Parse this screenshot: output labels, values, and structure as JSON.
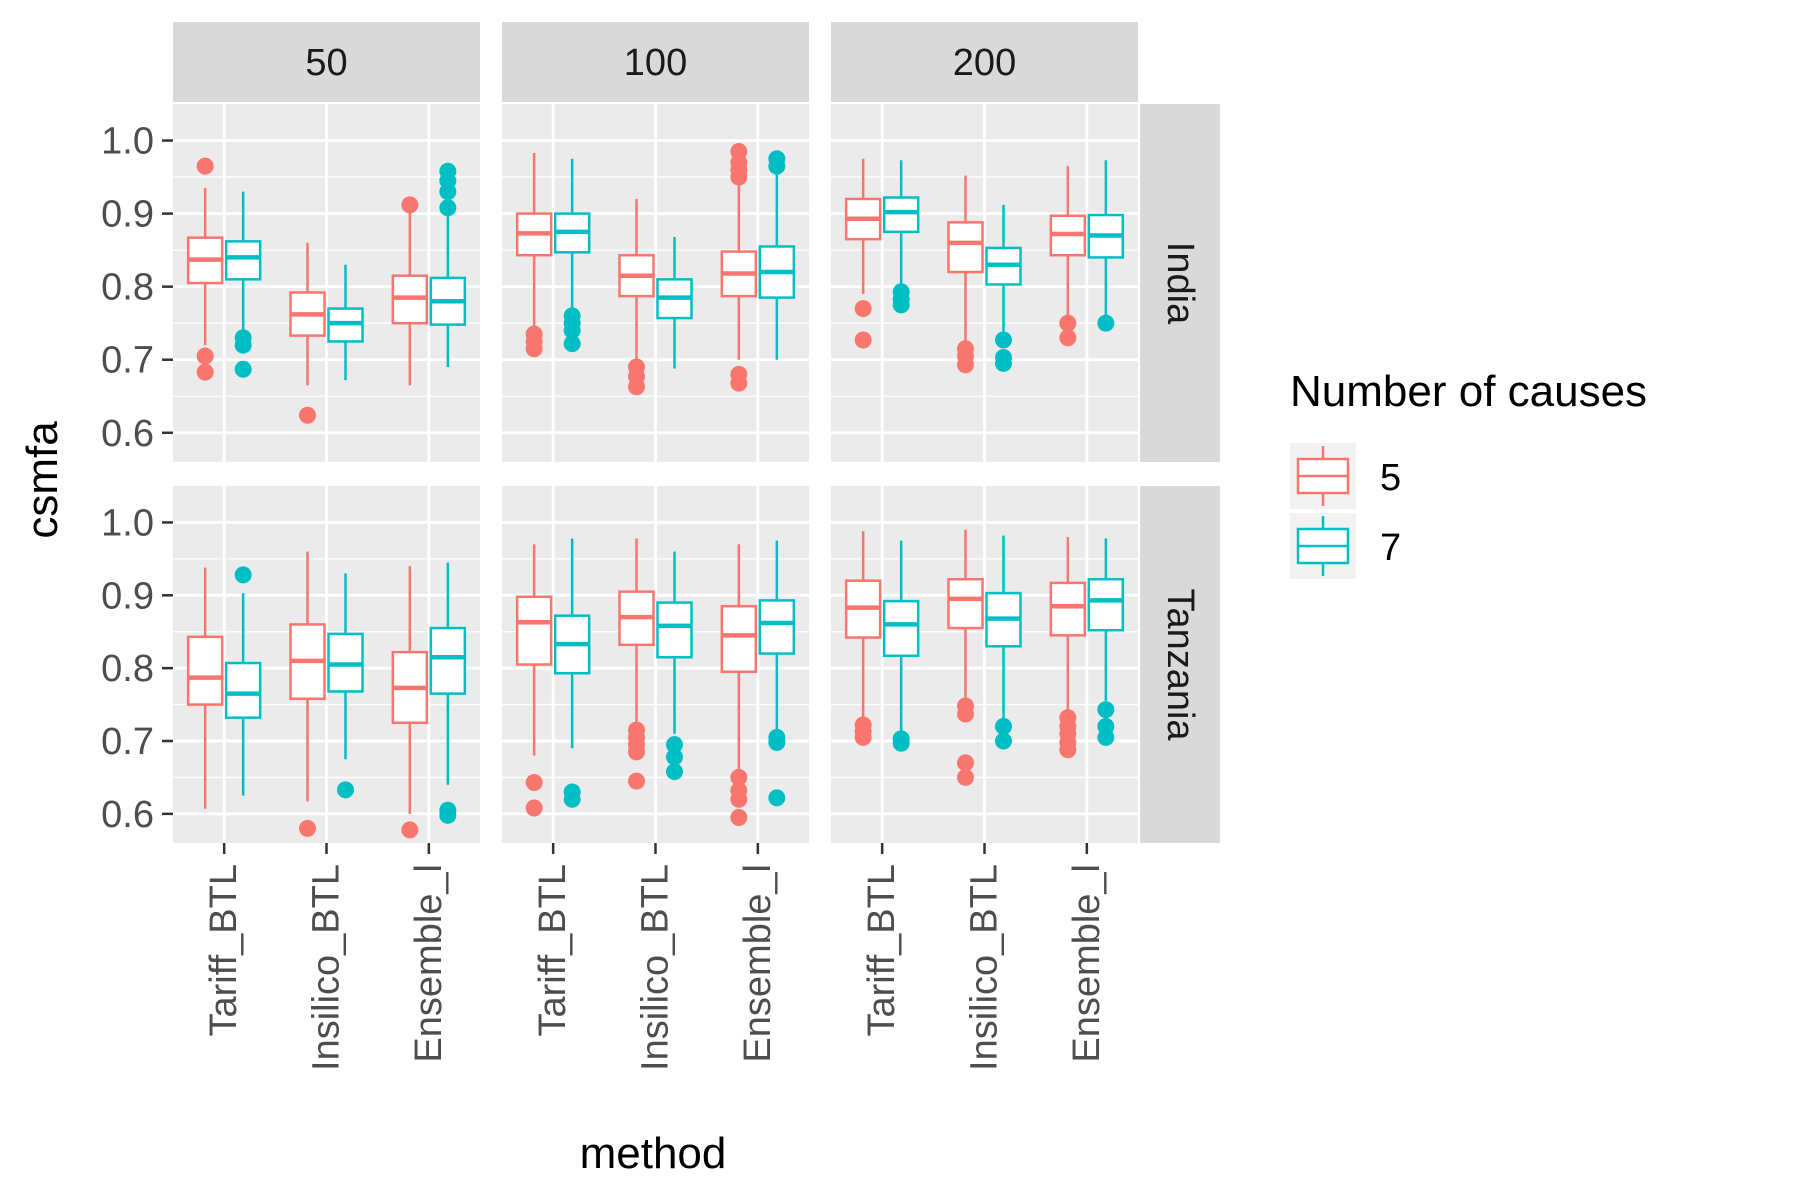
{
  "chart_data": {
    "type": "boxplot",
    "xlabel": "method",
    "ylabel": "csmfa",
    "ylim": [
      0.56,
      1.05
    ],
    "yticks": [
      "0.6",
      "0.7",
      "0.8",
      "0.9",
      "1.0"
    ],
    "categories": [
      "Tariff_BTL",
      "Insilico_BTL",
      "Ensemble_l"
    ],
    "column_facets": [
      "50",
      "100",
      "200"
    ],
    "row_facets": [
      "India",
      "Tanzania"
    ],
    "legend": {
      "title": "Number of causes",
      "position": "right",
      "entries": [
        {
          "label": "5",
          "color": "#F8766D"
        },
        {
          "label": "7",
          "color": "#00BFC4"
        }
      ]
    },
    "grid": true,
    "panels": [
      {
        "column": "50",
        "row": "India",
        "boxes": [
          {
            "method": "Tariff_BTL",
            "group": "5",
            "lower_whisker": 0.72,
            "q1": 0.805,
            "median": 0.837,
            "q3": 0.867,
            "upper_whisker": 0.935,
            "outliers": [
              0.965,
              0.705,
              0.683
            ]
          },
          {
            "method": "Tariff_BTL",
            "group": "7",
            "lower_whisker": 0.74,
            "q1": 0.81,
            "median": 0.84,
            "q3": 0.862,
            "upper_whisker": 0.93,
            "outliers": [
              0.73,
              0.72,
              0.687
            ]
          },
          {
            "method": "Insilico_BTL",
            "group": "5",
            "lower_whisker": 0.665,
            "q1": 0.733,
            "median": 0.762,
            "q3": 0.792,
            "upper_whisker": 0.86,
            "outliers": [
              0.624
            ]
          },
          {
            "method": "Insilico_BTL",
            "group": "7",
            "lower_whisker": 0.672,
            "q1": 0.725,
            "median": 0.75,
            "q3": 0.77,
            "upper_whisker": 0.83,
            "outliers": []
          },
          {
            "method": "Ensemble_l",
            "group": "5",
            "lower_whisker": 0.665,
            "q1": 0.75,
            "median": 0.785,
            "q3": 0.815,
            "upper_whisker": 0.905,
            "outliers": [
              0.912
            ]
          },
          {
            "method": "Ensemble_l",
            "group": "7",
            "lower_whisker": 0.69,
            "q1": 0.748,
            "median": 0.78,
            "q3": 0.812,
            "upper_whisker": 0.9,
            "outliers": [
              0.958,
              0.945,
              0.93,
              0.908
            ]
          }
        ]
      },
      {
        "column": "100",
        "row": "India",
        "boxes": [
          {
            "method": "Tariff_BTL",
            "group": "5",
            "lower_whisker": 0.745,
            "q1": 0.843,
            "median": 0.873,
            "q3": 0.9,
            "upper_whisker": 0.983,
            "outliers": [
              0.735,
              0.725,
              0.715
            ]
          },
          {
            "method": "Tariff_BTL",
            "group": "7",
            "lower_whisker": 0.765,
            "q1": 0.847,
            "median": 0.875,
            "q3": 0.9,
            "upper_whisker": 0.975,
            "outliers": [
              0.76,
              0.75,
              0.74,
              0.722
            ]
          },
          {
            "method": "Insilico_BTL",
            "group": "5",
            "lower_whisker": 0.7,
            "q1": 0.787,
            "median": 0.815,
            "q3": 0.843,
            "upper_whisker": 0.92,
            "outliers": [
              0.69,
              0.677,
              0.663
            ]
          },
          {
            "method": "Insilico_BTL",
            "group": "7",
            "lower_whisker": 0.688,
            "q1": 0.757,
            "median": 0.785,
            "q3": 0.81,
            "upper_whisker": 0.868,
            "outliers": []
          },
          {
            "method": "Ensemble_l",
            "group": "5",
            "lower_whisker": 0.7,
            "q1": 0.787,
            "median": 0.818,
            "q3": 0.848,
            "upper_whisker": 0.94,
            "outliers": [
              0.985,
              0.97,
              0.96,
              0.95,
              0.68,
              0.668
            ]
          },
          {
            "method": "Ensemble_l",
            "group": "7",
            "lower_whisker": 0.7,
            "q1": 0.785,
            "median": 0.82,
            "q3": 0.855,
            "upper_whisker": 0.96,
            "outliers": [
              0.975,
              0.965
            ]
          }
        ]
      },
      {
        "column": "200",
        "row": "India",
        "boxes": [
          {
            "method": "Tariff_BTL",
            "group": "5",
            "lower_whisker": 0.79,
            "q1": 0.865,
            "median": 0.893,
            "q3": 0.92,
            "upper_whisker": 0.975,
            "outliers": [
              0.77,
              0.727
            ]
          },
          {
            "method": "Tariff_BTL",
            "group": "7",
            "lower_whisker": 0.8,
            "q1": 0.875,
            "median": 0.902,
            "q3": 0.922,
            "upper_whisker": 0.973,
            "outliers": [
              0.793,
              0.783,
              0.775
            ]
          },
          {
            "method": "Insilico_BTL",
            "group": "5",
            "lower_whisker": 0.725,
            "q1": 0.82,
            "median": 0.86,
            "q3": 0.888,
            "upper_whisker": 0.952,
            "outliers": [
              0.715,
              0.705,
              0.693
            ]
          },
          {
            "method": "Insilico_BTL",
            "group": "7",
            "lower_whisker": 0.738,
            "q1": 0.803,
            "median": 0.83,
            "q3": 0.853,
            "upper_whisker": 0.912,
            "outliers": [
              0.727,
              0.703,
              0.695
            ]
          },
          {
            "method": "Ensemble_l",
            "group": "5",
            "lower_whisker": 0.76,
            "q1": 0.843,
            "median": 0.872,
            "q3": 0.897,
            "upper_whisker": 0.965,
            "outliers": [
              0.75,
              0.73
            ]
          },
          {
            "method": "Ensemble_l",
            "group": "7",
            "lower_whisker": 0.76,
            "q1": 0.84,
            "median": 0.87,
            "q3": 0.898,
            "upper_whisker": 0.973,
            "outliers": [
              0.75
            ]
          }
        ]
      },
      {
        "column": "50",
        "row": "Tanzania",
        "boxes": [
          {
            "method": "Tariff_BTL",
            "group": "5",
            "lower_whisker": 0.607,
            "q1": 0.75,
            "median": 0.787,
            "q3": 0.843,
            "upper_whisker": 0.938,
            "outliers": []
          },
          {
            "method": "Tariff_BTL",
            "group": "7",
            "lower_whisker": 0.625,
            "q1": 0.732,
            "median": 0.765,
            "q3": 0.807,
            "upper_whisker": 0.903,
            "outliers": [
              0.928
            ]
          },
          {
            "method": "Insilico_BTL",
            "group": "5",
            "lower_whisker": 0.617,
            "q1": 0.758,
            "median": 0.81,
            "q3": 0.86,
            "upper_whisker": 0.96,
            "outliers": [
              0.58
            ]
          },
          {
            "method": "Insilico_BTL",
            "group": "7",
            "lower_whisker": 0.675,
            "q1": 0.768,
            "median": 0.805,
            "q3": 0.847,
            "upper_whisker": 0.93,
            "outliers": [
              0.633
            ]
          },
          {
            "method": "Ensemble_l",
            "group": "5",
            "lower_whisker": 0.6,
            "q1": 0.725,
            "median": 0.773,
            "q3": 0.822,
            "upper_whisker": 0.94,
            "outliers": [
              0.578
            ]
          },
          {
            "method": "Ensemble_l",
            "group": "7",
            "lower_whisker": 0.64,
            "q1": 0.765,
            "median": 0.815,
            "q3": 0.855,
            "upper_whisker": 0.945,
            "outliers": [
              0.605,
              0.598
            ]
          }
        ]
      },
      {
        "column": "100",
        "row": "Tanzania",
        "boxes": [
          {
            "method": "Tariff_BTL",
            "group": "5",
            "lower_whisker": 0.68,
            "q1": 0.805,
            "median": 0.863,
            "q3": 0.898,
            "upper_whisker": 0.97,
            "outliers": [
              0.643,
              0.608
            ]
          },
          {
            "method": "Tariff_BTL",
            "group": "7",
            "lower_whisker": 0.69,
            "q1": 0.793,
            "median": 0.833,
            "q3": 0.872,
            "upper_whisker": 0.978,
            "outliers": [
              0.63,
              0.62
            ]
          },
          {
            "method": "Insilico_BTL",
            "group": "5",
            "lower_whisker": 0.72,
            "q1": 0.832,
            "median": 0.87,
            "q3": 0.905,
            "upper_whisker": 0.978,
            "outliers": [
              0.715,
              0.705,
              0.695,
              0.685,
              0.645
            ]
          },
          {
            "method": "Insilico_BTL",
            "group": "7",
            "lower_whisker": 0.71,
            "q1": 0.815,
            "median": 0.858,
            "q3": 0.89,
            "upper_whisker": 0.96,
            "outliers": [
              0.695,
              0.678,
              0.658
            ]
          },
          {
            "method": "Ensemble_l",
            "group": "5",
            "lower_whisker": 0.66,
            "q1": 0.795,
            "median": 0.845,
            "q3": 0.885,
            "upper_whisker": 0.97,
            "outliers": [
              0.65,
              0.632,
              0.62,
              0.595
            ]
          },
          {
            "method": "Ensemble_l",
            "group": "7",
            "lower_whisker": 0.715,
            "q1": 0.82,
            "median": 0.862,
            "q3": 0.893,
            "upper_whisker": 0.975,
            "outliers": [
              0.705,
              0.698,
              0.622
            ]
          }
        ]
      },
      {
        "column": "200",
        "row": "Tanzania",
        "boxes": [
          {
            "method": "Tariff_BTL",
            "group": "5",
            "lower_whisker": 0.725,
            "q1": 0.842,
            "median": 0.883,
            "q3": 0.92,
            "upper_whisker": 0.988,
            "outliers": [
              0.722,
              0.713,
              0.705
            ]
          },
          {
            "method": "Tariff_BTL",
            "group": "7",
            "lower_whisker": 0.71,
            "q1": 0.817,
            "median": 0.86,
            "q3": 0.892,
            "upper_whisker": 0.975,
            "outliers": [
              0.703,
              0.697
            ]
          },
          {
            "method": "Insilico_BTL",
            "group": "5",
            "lower_whisker": 0.755,
            "q1": 0.855,
            "median": 0.895,
            "q3": 0.922,
            "upper_whisker": 0.99,
            "outliers": [
              0.748,
              0.737,
              0.67,
              0.65
            ]
          },
          {
            "method": "Insilico_BTL",
            "group": "7",
            "lower_whisker": 0.73,
            "q1": 0.83,
            "median": 0.868,
            "q3": 0.903,
            "upper_whisker": 0.982,
            "outliers": [
              0.72,
              0.7
            ]
          },
          {
            "method": "Ensemble_l",
            "group": "5",
            "lower_whisker": 0.74,
            "q1": 0.845,
            "median": 0.885,
            "q3": 0.917,
            "upper_whisker": 0.98,
            "outliers": [
              0.732,
              0.72,
              0.71,
              0.698,
              0.688
            ]
          },
          {
            "method": "Ensemble_l",
            "group": "7",
            "lower_whisker": 0.755,
            "q1": 0.852,
            "median": 0.893,
            "q3": 0.922,
            "upper_whisker": 0.978,
            "outliers": [
              0.743,
              0.72,
              0.705
            ]
          }
        ]
      }
    ]
  }
}
